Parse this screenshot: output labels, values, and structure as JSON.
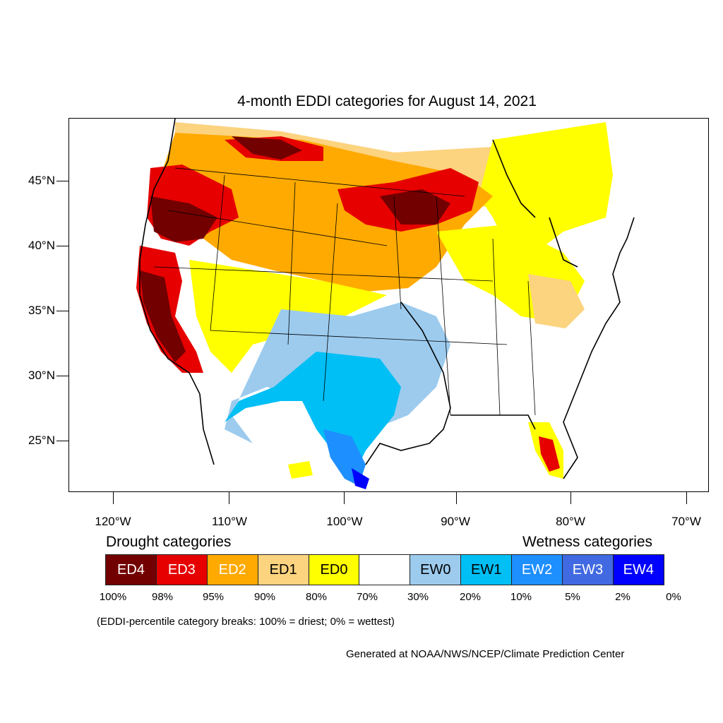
{
  "title": "4-month EDDI categories for August 14, 2021",
  "lat_labels": [
    "45°N",
    "40°N",
    "35°N",
    "30°N",
    "25°N"
  ],
  "lon_labels": [
    "120°W",
    "110°W",
    "100°W",
    "90°W",
    "80°W",
    "70°W"
  ],
  "drought_header": "Drought categories",
  "wetness_header": "Wetness categories",
  "legend": [
    {
      "label": "ED4",
      "color": "#730000",
      "text_color": "#ffffff"
    },
    {
      "label": "ED3",
      "color": "#e60000",
      "text_color": "#ffffff"
    },
    {
      "label": "ED2",
      "color": "#ffaa00",
      "text_color": "#ffffff"
    },
    {
      "label": "ED1",
      "color": "#fcd37f",
      "text_color": "#000000"
    },
    {
      "label": "ED0",
      "color": "#ffff00",
      "text_color": "#000000"
    },
    {
      "label": "",
      "color": "#ffffff",
      "text_color": "#000000"
    },
    {
      "label": "EW0",
      "color": "#9ccbee",
      "text_color": "#000000"
    },
    {
      "label": "EW1",
      "color": "#00bff5",
      "text_color": "#000000"
    },
    {
      "label": "EW2",
      "color": "#1e8fff",
      "text_color": "#ffffff"
    },
    {
      "label": "EW3",
      "color": "#4169e1",
      "text_color": "#ffffff"
    },
    {
      "label": "EW4",
      "color": "#0000ff",
      "text_color": "#ffffff"
    }
  ],
  "percentiles": [
    "100%",
    "98%",
    "95%",
    "90%",
    "80%",
    "70%",
    "30%",
    "20%",
    "10%",
    "5%",
    "2%",
    "0%"
  ],
  "note": "(EDDI-percentile category breaks: 100% = driest; 0% = wettest)",
  "credit": "Generated at NOAA/NWS/NCEP/Climate Prediction Center"
}
